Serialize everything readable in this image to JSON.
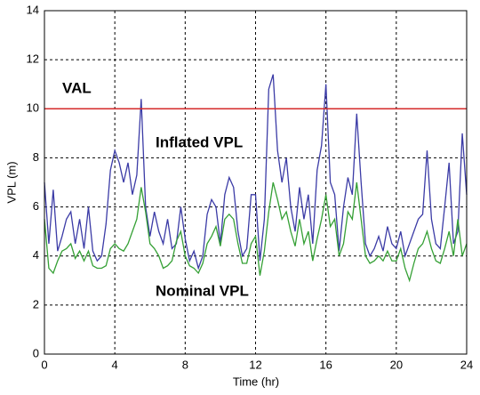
{
  "chart_data": {
    "type": "line",
    "x_label": "Time (hr)",
    "y_label": "VPL (m)",
    "x": [
      0,
      0.25,
      0.5,
      0.75,
      1,
      1.25,
      1.5,
      1.75,
      2,
      2.25,
      2.5,
      2.75,
      3,
      3.25,
      3.5,
      3.75,
      4,
      4.25,
      4.5,
      4.75,
      5,
      5.25,
      5.5,
      5.75,
      6,
      6.25,
      6.5,
      6.75,
      7,
      7.25,
      7.5,
      7.75,
      8,
      8.25,
      8.5,
      8.75,
      9,
      9.25,
      9.5,
      9.75,
      10,
      10.25,
      10.5,
      10.75,
      11,
      11.25,
      11.5,
      11.75,
      12,
      12.25,
      12.5,
      12.75,
      13,
      13.25,
      13.5,
      13.75,
      14,
      14.25,
      14.5,
      14.75,
      15,
      15.25,
      15.5,
      15.75,
      16,
      16.25,
      16.5,
      16.75,
      17,
      17.25,
      17.5,
      17.75,
      18,
      18.25,
      18.5,
      18.75,
      19,
      19.25,
      19.5,
      19.75,
      20,
      20.25,
      20.5,
      20.75,
      21,
      21.25,
      21.5,
      21.75,
      22,
      22.25,
      22.5,
      22.75,
      23,
      23.25,
      23.5,
      23.75,
      24
    ],
    "series": [
      {
        "name": "Inflated VPL",
        "color": "#3b3ba6",
        "values": [
          7,
          4.5,
          6.7,
          4.2,
          4.8,
          5.5,
          5.8,
          4.5,
          5.5,
          4.3,
          6,
          4.2,
          3.8,
          4,
          5.3,
          7.5,
          8.3,
          7.8,
          7,
          7.8,
          6.5,
          7.3,
          10.4,
          6,
          4.8,
          5.8,
          5,
          4.5,
          5.5,
          4.3,
          4.5,
          6,
          4.7,
          3.8,
          4.2,
          3.5,
          4,
          5.7,
          6.3,
          6,
          4.5,
          6.5,
          7.2,
          6.8,
          5,
          4,
          4.3,
          6.5,
          6.5,
          3.8,
          5.5,
          10.8,
          11.4,
          8.3,
          7,
          8,
          6,
          5,
          6.8,
          5.5,
          6.5,
          4.5,
          7.5,
          8.5,
          11,
          7,
          6.5,
          4.2,
          6,
          7.2,
          6.5,
          9.8,
          7,
          4.5,
          4,
          4.3,
          4.8,
          4.2,
          5.2,
          4.5,
          4.3,
          5,
          4,
          4.5,
          5,
          5.5,
          5.7,
          8.3,
          5.5,
          4.5,
          4.3,
          6,
          7.8,
          4.5,
          5,
          9,
          6.5
        ]
      },
      {
        "name": "Nominal VPL",
        "color": "#35a035",
        "values": [
          5.5,
          3.5,
          3.3,
          3.8,
          4.2,
          4.3,
          4.5,
          3.9,
          4.2,
          3.8,
          4.2,
          3.6,
          3.5,
          3.5,
          3.6,
          4.3,
          4.5,
          4.3,
          4.2,
          4.5,
          5,
          5.5,
          6.8,
          5.8,
          4.5,
          4.3,
          4,
          3.5,
          3.6,
          3.8,
          4.6,
          5,
          4,
          3.6,
          3.5,
          3.3,
          3.7,
          4.5,
          4.8,
          5.2,
          4.4,
          5.5,
          5.7,
          5.5,
          4.5,
          3.7,
          3.7,
          4.5,
          4.8,
          3.2,
          4.2,
          5.8,
          7,
          6.3,
          5.5,
          5.8,
          5,
          4.4,
          5.5,
          4.5,
          5,
          3.8,
          4.7,
          5.5,
          6.5,
          5.2,
          5.5,
          4,
          4.5,
          5.8,
          5.5,
          7,
          5.5,
          4,
          3.7,
          3.8,
          4,
          3.8,
          4.2,
          3.8,
          3.8,
          4.3,
          3.5,
          3,
          3.7,
          4.3,
          4.5,
          5,
          4.3,
          3.8,
          3.7,
          4.3,
          5,
          4,
          5.5,
          4,
          4.5
        ]
      }
    ],
    "reference_line": {
      "label": "VAL",
      "value": 10,
      "color": "#d42a2a"
    },
    "xlim": [
      0,
      24
    ],
    "xticks": [
      0,
      4,
      8,
      12,
      16,
      20,
      24
    ],
    "ylim": [
      0,
      14
    ],
    "yticks": [
      0,
      2,
      4,
      6,
      8,
      10,
      12,
      14
    ],
    "grid": true
  }
}
